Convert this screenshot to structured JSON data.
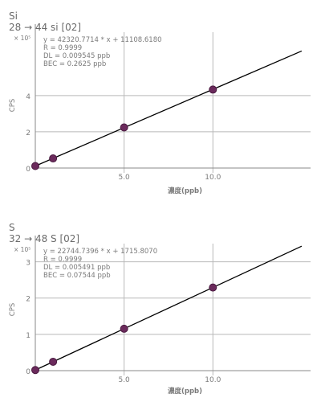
{
  "chart_data": [
    {
      "type": "scatter",
      "element": "Si",
      "transition": "28 → 44 si [02]",
      "y_multiplier": "× 10⁵",
      "xlabel": "濃度(ppb)",
      "ylabel": "CPS",
      "xlim": [
        0,
        15.5
      ],
      "ylim": [
        0,
        7.5
      ],
      "x_ticks": [
        0,
        5,
        10
      ],
      "x_tick_labels": [
        "",
        "5.0",
        "10.0"
      ],
      "y_ticks": [
        0,
        2,
        4
      ],
      "y_tick_labels": [
        "0",
        "2",
        "4"
      ],
      "equation": "y = 42320.7714 * x + 11108.6180",
      "r": "R = 0.9999",
      "dl": "DL = 0.009545 ppb",
      "bec": "BEC = 0.2625 ppb",
      "fit": {
        "slope": 0.423207714,
        "intercept": 0.11108618
      },
      "points": [
        {
          "x": 0,
          "y": 0.11
        },
        {
          "x": 1,
          "y": 0.53
        },
        {
          "x": 5,
          "y": 2.24
        },
        {
          "x": 10,
          "y": 4.33
        }
      ],
      "grid": true
    },
    {
      "type": "scatter",
      "element": "S",
      "transition": "32 → 48 S [02]",
      "y_multiplier": "× 10⁵",
      "xlabel": "濃度(ppb)",
      "ylabel": "CPS",
      "xlim": [
        0,
        15.5
      ],
      "ylim": [
        0,
        3.5
      ],
      "x_ticks": [
        0,
        5,
        10
      ],
      "x_tick_labels": [
        "",
        "5.0",
        "10.0"
      ],
      "y_ticks": [
        0,
        1,
        2,
        3
      ],
      "y_tick_labels": [
        "0",
        "1",
        "2",
        "3"
      ],
      "equation": "y = 22744.7396 * x + 1715.8070",
      "r": "R = 0.9999",
      "dl": "DL = 0.005491 ppb",
      "bec": "BEC = 0.07544 ppb",
      "fit": {
        "slope": 0.227447396,
        "intercept": 0.01715807
      },
      "points": [
        {
          "x": 0,
          "y": 0.017
        },
        {
          "x": 1,
          "y": 0.245
        },
        {
          "x": 5,
          "y": 1.155
        },
        {
          "x": 10,
          "y": 2.29
        }
      ],
      "grid": true
    }
  ],
  "colors": {
    "point_fill": "#6b2a5c",
    "point_stroke": "#4a1a40",
    "fit_line": "#000000",
    "grid": "#b9b9b9",
    "axis": "#8a8a8a",
    "text": "#7a7a7a"
  }
}
